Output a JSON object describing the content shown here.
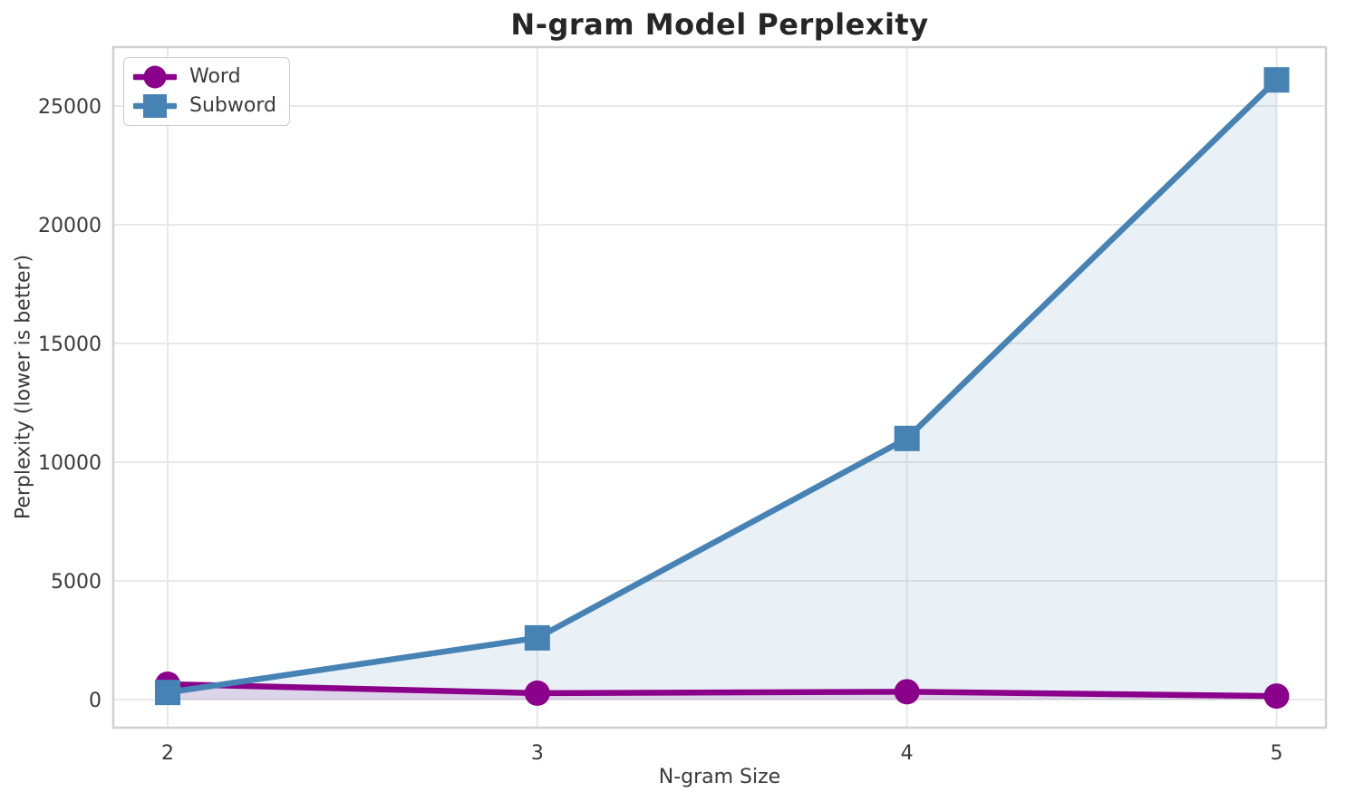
{
  "chart_data": {
    "type": "line",
    "title": "N-gram Model Perplexity",
    "xlabel": "N-gram Size",
    "ylabel": "Perplexity (lower is better)",
    "x": [
      2,
      3,
      4,
      5
    ],
    "xtick_labels": [
      "2",
      "3",
      "4",
      "5"
    ],
    "ytick_values": [
      0,
      5000,
      10000,
      15000,
      20000,
      25000
    ],
    "ytick_labels": [
      "0",
      "5000",
      "10000",
      "15000",
      "20000",
      "25000"
    ],
    "xlim": [
      1.853,
      5.134
    ],
    "ylim": [
      -1180,
      27480
    ],
    "grid": true,
    "legend_position": "upper left",
    "series": [
      {
        "name": "Word",
        "color": "#8B008B",
        "marker": "circle",
        "values": [
          650,
          270,
          330,
          150
        ],
        "fill_to_zero": true,
        "fill_opacity": 0.12
      },
      {
        "name": "Subword",
        "color": "#4682B4",
        "marker": "square",
        "values": [
          300,
          2600,
          11000,
          26100
        ],
        "fill_to_zero": true,
        "fill_opacity": 0.12
      }
    ],
    "style": {
      "grid_color": "#e8e8e8",
      "spine_color": "#d0d0d0",
      "title_color": "#262626",
      "text_color": "#3a3a3a",
      "background": "#ffffff",
      "line_width": 6.5,
      "marker_size": 28
    }
  }
}
